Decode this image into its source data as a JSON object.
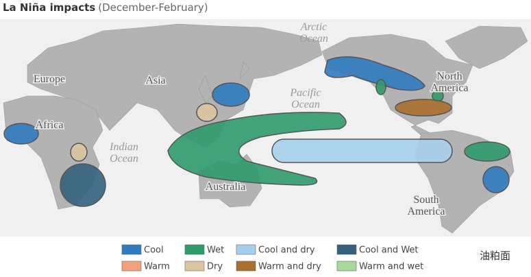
{
  "title": {
    "main": "La Niña impacts",
    "sub": "(December-February)"
  },
  "map_labels": {
    "arctic": [
      "Arctic",
      "Ocean"
    ],
    "pacific": [
      "Pacific",
      "Ocean"
    ],
    "indian": [
      "Indian",
      "Ocean"
    ],
    "europe": [
      "Europe"
    ],
    "asia": [
      "Asia"
    ],
    "africa": [
      "Africa"
    ],
    "australia": [
      "Australia"
    ],
    "north_america": [
      "North",
      "America"
    ],
    "south_america": [
      "South",
      "America"
    ]
  },
  "legend": [
    {
      "label": "Cool",
      "color": "#2f7bbf"
    },
    {
      "label": "Warm",
      "color": "#f4a07a"
    },
    {
      "label": "Wet",
      "color": "#2f9a6b"
    },
    {
      "label": "Dry",
      "color": "#dcc49e"
    },
    {
      "label": "Cool and dry",
      "color": "#a6cfee"
    },
    {
      "label": "Warm and dry",
      "color": "#a86f2e"
    },
    {
      "label": "Cool and Wet",
      "color": "#33607d"
    },
    {
      "label": "Warm and wet",
      "color": "#a6d99a"
    }
  ],
  "watermark": "油粕面"
}
